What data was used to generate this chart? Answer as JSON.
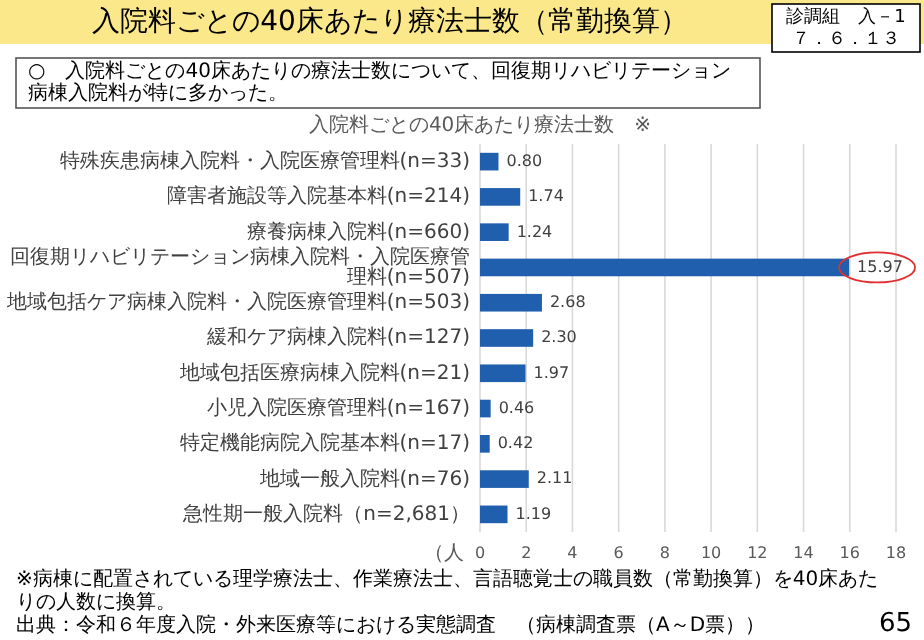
{
  "chart_data": {
    "type": "bar",
    "orientation": "horizontal",
    "title": "入院料ごとの40床あたり療法士数　※",
    "categories": [
      "特殊疾患病棟入院料・入院医療管理料(n=33)",
      "障害者施設等入院基本料(n=214)",
      "療養病棟入院料(n=660)",
      "回復期リハビリテーション病棟入院料・入院医療管理料(n=507)",
      "地域包括ケア病棟入院料・入院医療管理料(n=503)",
      "緩和ケア病棟入院料(n=127)",
      "地域包括医療病棟入院料(n=21)",
      "小児入院医療管理料(n=167)",
      "特定機能病院入院基本料(n=17)",
      "地域一般入院料(n=76)",
      "急性期一般入院料（n=2,681）"
    ],
    "values": [
      0.8,
      1.74,
      1.24,
      15.97,
      2.68,
      2.3,
      1.97,
      0.46,
      0.42,
      2.11,
      1.19
    ],
    "value_labels": [
      "0.80",
      "1.74",
      "1.24",
      "15.97",
      "2.68",
      "2.30",
      "1.97",
      "0.46",
      "0.42",
      "2.11",
      "1.19"
    ],
    "color": "#1f5fad",
    "grid": "x",
    "xlabel": "（人",
    "xlim": [
      0,
      18
    ],
    "xticks": [
      0,
      2,
      4,
      6,
      8,
      10,
      12,
      14,
      16,
      18
    ],
    "annotations": [
      "入院料ごとの40床あたり療法士数（常勤換算）",
      "診調組　入－1",
      "７．６．１３",
      "○　入院料ごとの40床あたりの療法士数について、回復期リハビリテーション病棟入院料が特に多かった。",
      "※病棟に配置されている理学療法士、作業療法士、言語聴覚士の職員数（常勤換算）を40床あたりの人数に換算。",
      "出典：令和６年度入院・外来医療等における実態調査　（病棟調査票（A～D票））",
      "65"
    ]
  }
}
